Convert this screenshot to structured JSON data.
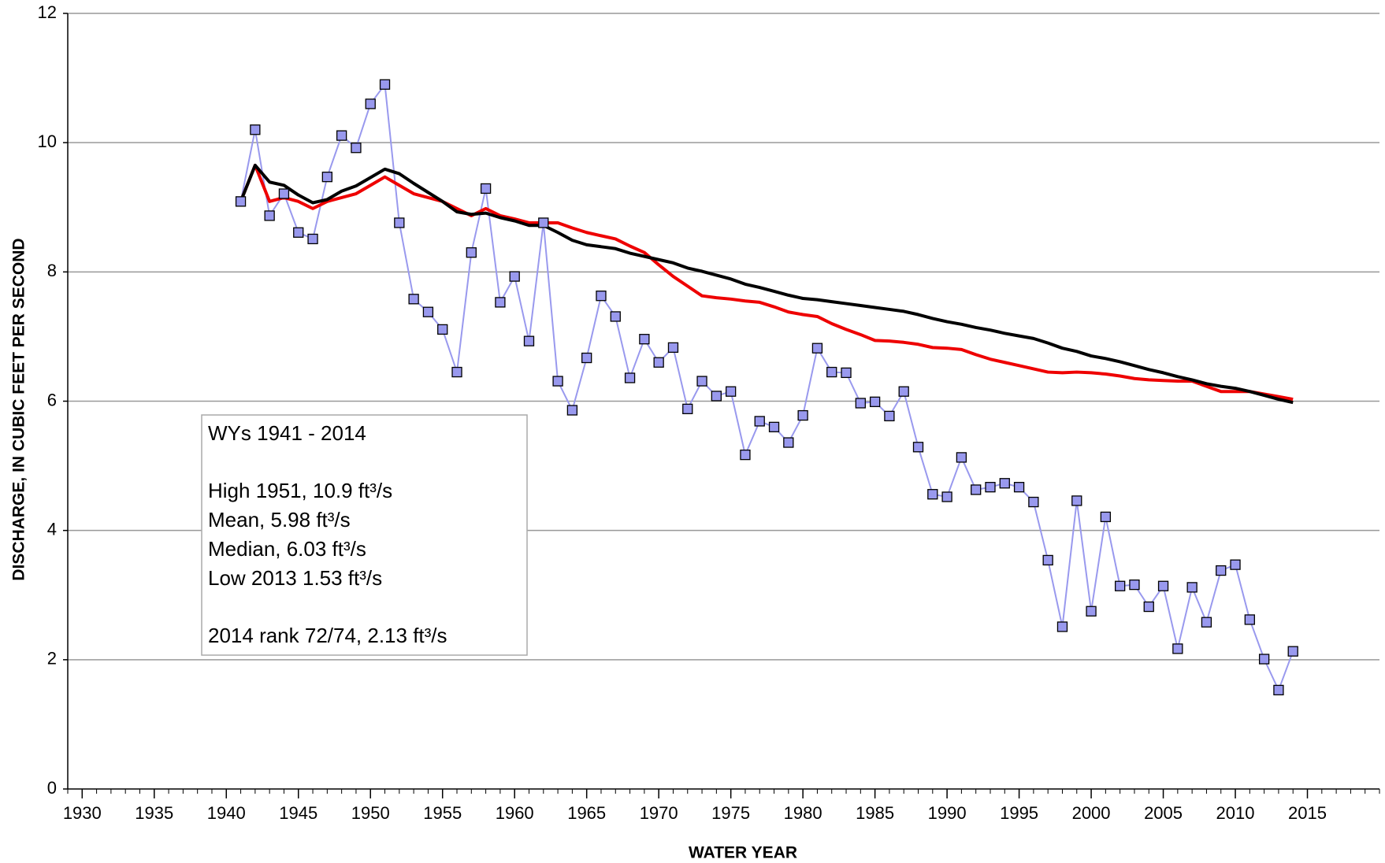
{
  "chart_data": {
    "type": "line",
    "xlabel": "WATER YEAR",
    "ylabel": "DISCHARGE, IN CUBIC FEET PER SECOND",
    "x": [
      1941,
      1942,
      1943,
      1944,
      1945,
      1946,
      1947,
      1948,
      1949,
      1950,
      1951,
      1952,
      1953,
      1954,
      1955,
      1956,
      1957,
      1958,
      1959,
      1960,
      1961,
      1962,
      1963,
      1964,
      1965,
      1966,
      1967,
      1968,
      1969,
      1970,
      1971,
      1972,
      1973,
      1974,
      1975,
      1976,
      1977,
      1978,
      1979,
      1980,
      1981,
      1982,
      1983,
      1984,
      1985,
      1986,
      1987,
      1988,
      1989,
      1990,
      1991,
      1992,
      1993,
      1994,
      1995,
      1996,
      1997,
      1998,
      1999,
      2000,
      2001,
      2002,
      2003,
      2004,
      2005,
      2006,
      2007,
      2008,
      2009,
      2010,
      2011,
      2012,
      2013,
      2014
    ],
    "series": [
      {
        "color": "#9999ee",
        "marker": "square",
        "marker_color": "#9999ee",
        "values": [
          9.09,
          10.2,
          8.87,
          9.21,
          8.61,
          8.51,
          9.47,
          10.11,
          9.92,
          10.6,
          10.9,
          8.76,
          7.58,
          7.38,
          7.11,
          6.45,
          8.3,
          9.29,
          7.53,
          7.93,
          6.93,
          8.76,
          6.31,
          5.86,
          6.67,
          7.63,
          7.31,
          6.36,
          6.96,
          6.6,
          6.83,
          5.88,
          6.31,
          6.08,
          6.15,
          5.17,
          5.69,
          5.6,
          5.36,
          5.78,
          6.82,
          6.45,
          6.44,
          5.97,
          5.99,
          5.77,
          6.15,
          5.29,
          4.56,
          4.52,
          5.13,
          4.63,
          4.67,
          4.73,
          4.67,
          4.44,
          3.54,
          2.51,
          4.46,
          2.75,
          4.21,
          3.14,
          3.16,
          2.82,
          3.14,
          2.17,
          3.12,
          2.58,
          3.38,
          3.47,
          2.62,
          2.01,
          1.53,
          2.13
        ]
      },
      {
        "color": "#000000",
        "values": [
          9.09,
          9.65,
          9.39,
          9.34,
          9.19,
          9.07,
          9.12,
          9.25,
          9.33,
          9.46,
          9.59,
          9.52,
          9.37,
          9.23,
          9.09,
          8.93,
          8.89,
          8.91,
          8.84,
          8.79,
          8.72,
          8.72,
          8.61,
          8.49,
          8.42,
          8.39,
          8.36,
          8.29,
          8.24,
          8.19,
          8.14,
          8.06,
          8.01,
          7.95,
          7.89,
          7.81,
          7.76,
          7.7,
          7.64,
          7.59,
          7.57,
          7.54,
          7.51,
          7.48,
          7.45,
          7.42,
          7.39,
          7.34,
          7.28,
          7.23,
          7.19,
          7.14,
          7.1,
          7.05,
          7.01,
          6.97,
          6.9,
          6.82,
          6.77,
          6.7,
          6.66,
          6.61,
          6.55,
          6.49,
          6.44,
          6.38,
          6.33,
          6.27,
          6.23,
          6.2,
          6.15,
          6.09,
          6.03,
          5.98
        ]
      },
      {
        "color": "#ee0000",
        "values": [
          9.09,
          9.65,
          9.09,
          9.15,
          9.09,
          8.98,
          9.09,
          9.15,
          9.21,
          9.34,
          9.47,
          9.34,
          9.21,
          9.15,
          9.09,
          8.98,
          8.87,
          8.98,
          8.87,
          8.82,
          8.76,
          8.76,
          8.76,
          8.68,
          8.61,
          8.56,
          8.51,
          8.4,
          8.3,
          8.11,
          7.93,
          7.78,
          7.63,
          7.6,
          7.58,
          7.55,
          7.53,
          7.46,
          7.38,
          7.34,
          7.31,
          7.2,
          7.11,
          7.03,
          6.94,
          6.93,
          6.91,
          6.88,
          6.83,
          6.82,
          6.8,
          6.72,
          6.65,
          6.6,
          6.55,
          6.5,
          6.45,
          6.44,
          6.45,
          6.44,
          6.42,
          6.39,
          6.35,
          6.33,
          6.32,
          6.31,
          6.31,
          6.23,
          6.15,
          6.15,
          6.15,
          6.11,
          6.07,
          6.03
        ]
      }
    ],
    "xlim": [
      1929,
      2020
    ],
    "xticks": [
      1930,
      1935,
      1940,
      1945,
      1950,
      1955,
      1960,
      1965,
      1970,
      1975,
      1980,
      1985,
      1990,
      1995,
      2000,
      2005,
      2010,
      2015
    ],
    "xminorticks": [
      1929,
      1930,
      1931,
      1932,
      1933,
      1934,
      1935,
      1936,
      1937,
      1938,
      1939,
      1940,
      1941,
      1942,
      1943,
      1944,
      1945,
      1946,
      1947,
      1948,
      1949,
      1950,
      1951,
      1952,
      1953,
      1954,
      1955,
      1956,
      1957,
      1958,
      1959,
      1960,
      1961,
      1962,
      1963,
      1964,
      1965,
      1966,
      1967,
      1968,
      1969,
      1970,
      1971,
      1972,
      1973,
      1974,
      1975,
      1976,
      1977,
      1978,
      1979,
      1980,
      1981,
      1982,
      1983,
      1984,
      1985,
      1986,
      1987,
      1988,
      1989,
      1990,
      1991,
      1992,
      1993,
      1994,
      1995,
      1996,
      1997,
      1998,
      1999,
      2000,
      2001,
      2002,
      2003,
      2004,
      2005,
      2006,
      2007,
      2008,
      2009,
      2010,
      2011,
      2012,
      2013,
      2014,
      2015,
      2016,
      2017,
      2018,
      2019,
      2020
    ],
    "ylim": [
      0,
      12
    ],
    "yticks": [
      0,
      2,
      4,
      6,
      8,
      10,
      12
    ],
    "grid": true,
    "annotations": [
      "WYs 1941 - 2014",
      "High 1951, 10.9 ft³/s",
      "Mean, 5.98 ft³/s",
      "Median, 6.03 ft³/s",
      "Low 2013 1.53 ft³/s",
      "2014 rank 72/74, 2.13 ft³/s"
    ]
  }
}
